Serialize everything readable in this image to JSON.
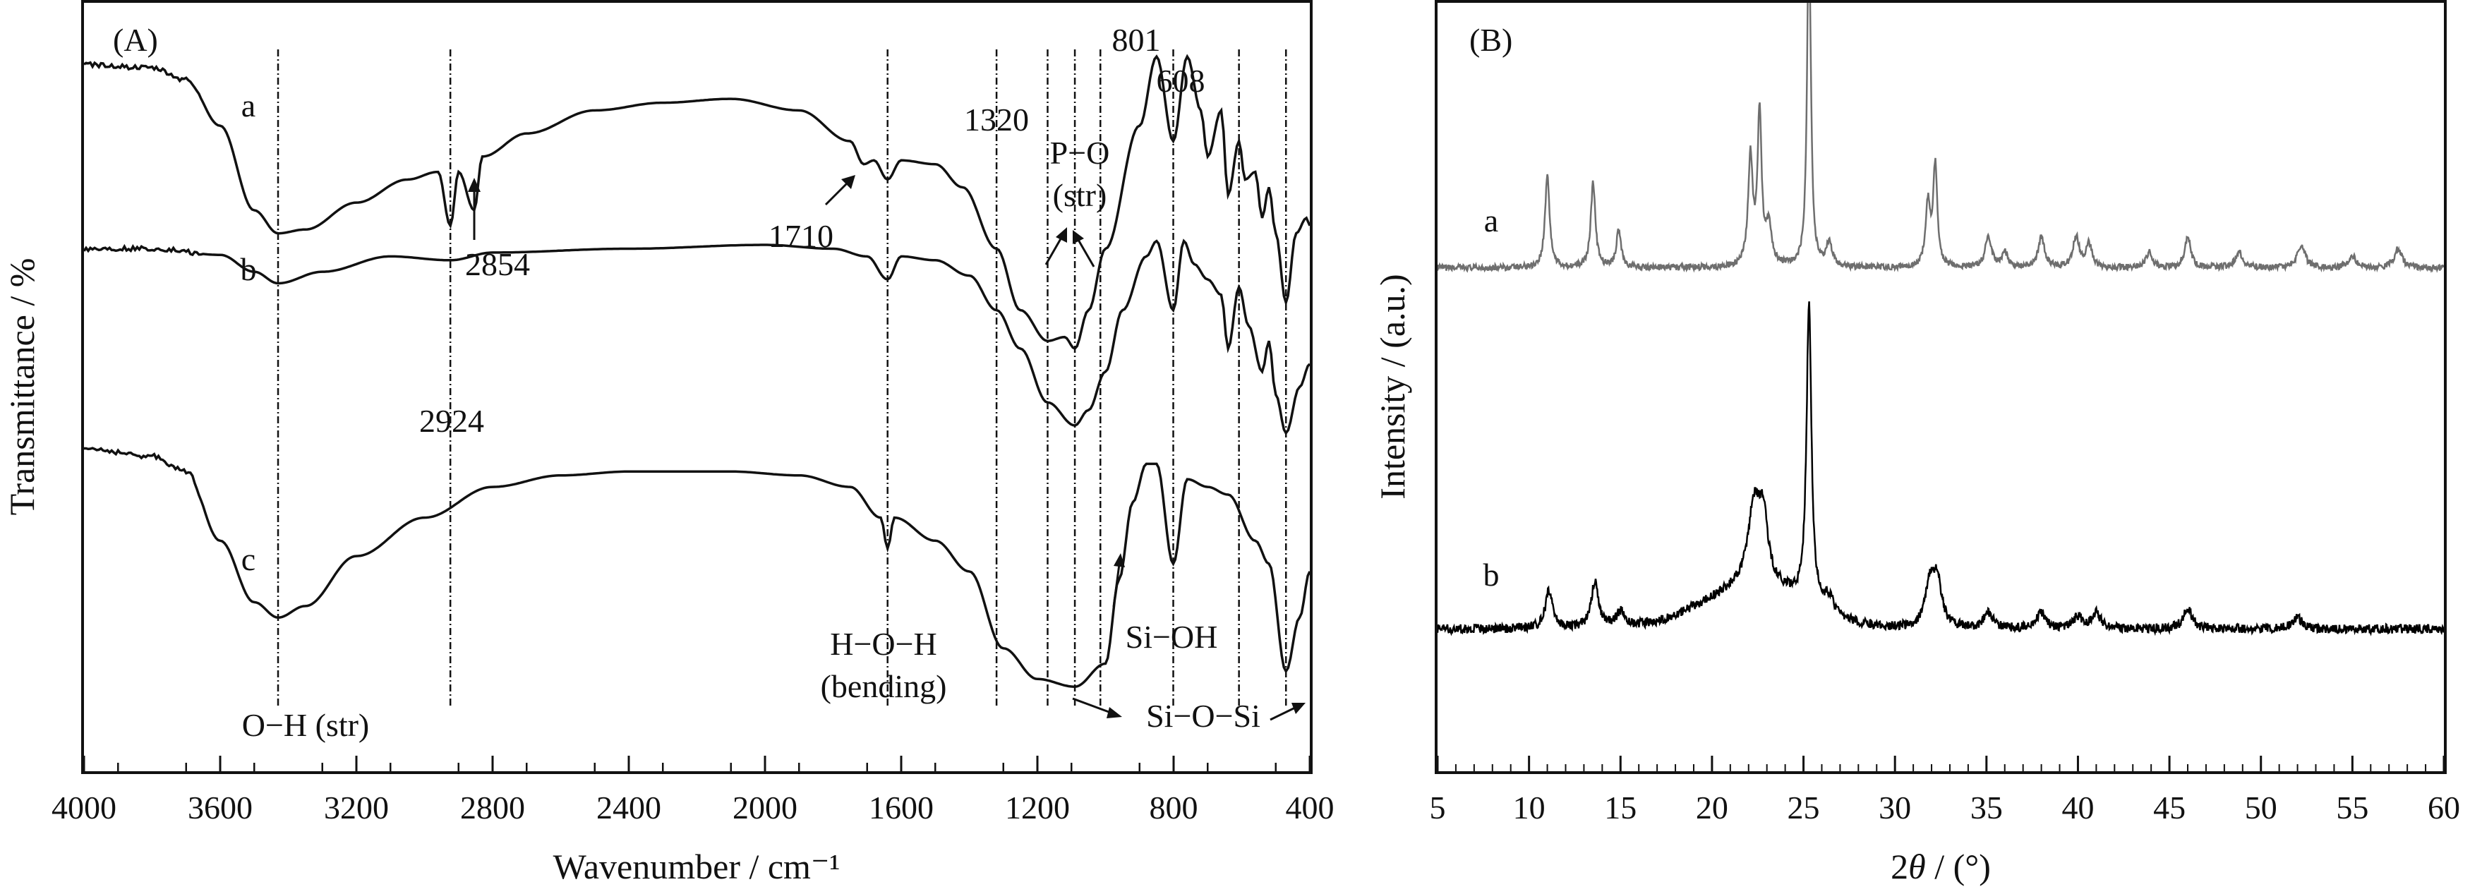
{
  "chart_data": [
    {
      "panel_label": "(A)",
      "type": "line",
      "xlabel": "Wavenumber / cm⁻¹",
      "ylabel": "Transmittance / %",
      "xlim": [
        4000,
        400
      ],
      "x_reversed": true,
      "xticks": [
        4000,
        3600,
        3200,
        2800,
        2400,
        2000,
        1600,
        1200,
        800,
        400
      ],
      "y_ticks_shown": false,
      "series": [
        {
          "name": "a",
          "color": "#111111",
          "points": [
            [
              4000,
              0.92
            ],
            [
              3800,
              0.915
            ],
            [
              3700,
              0.9
            ],
            [
              3600,
              0.84
            ],
            [
              3500,
              0.73
            ],
            [
              3430,
              0.7
            ],
            [
              3350,
              0.705
            ],
            [
              3200,
              0.74
            ],
            [
              3050,
              0.77
            ],
            [
              2960,
              0.78
            ],
            [
              2924,
              0.71
            ],
            [
              2900,
              0.78
            ],
            [
              2854,
              0.73
            ],
            [
              2830,
              0.8
            ],
            [
              2700,
              0.83
            ],
            [
              2500,
              0.86
            ],
            [
              2300,
              0.87
            ],
            [
              2100,
              0.875
            ],
            [
              1900,
              0.86
            ],
            [
              1750,
              0.82
            ],
            [
              1710,
              0.79
            ],
            [
              1680,
              0.795
            ],
            [
              1640,
              0.77
            ],
            [
              1600,
              0.795
            ],
            [
              1500,
              0.79
            ],
            [
              1420,
              0.76
            ],
            [
              1320,
              0.68
            ],
            [
              1250,
              0.6
            ],
            [
              1170,
              0.56
            ],
            [
              1120,
              0.565
            ],
            [
              1090,
              0.55
            ],
            [
              1050,
              0.6
            ],
            [
              1000,
              0.68
            ],
            [
              900,
              0.84
            ],
            [
              850,
              0.93
            ],
            [
              801,
              0.82
            ],
            [
              760,
              0.93
            ],
            [
              720,
              0.86
            ],
            [
              700,
              0.8
            ],
            [
              660,
              0.86
            ],
            [
              640,
              0.75
            ],
            [
              608,
              0.82
            ],
            [
              590,
              0.77
            ],
            [
              560,
              0.78
            ],
            [
              540,
              0.72
            ],
            [
              520,
              0.76
            ],
            [
              500,
              0.7
            ],
            [
              470,
              0.61
            ],
            [
              440,
              0.7
            ],
            [
              410,
              0.72
            ],
            [
              400,
              0.71
            ]
          ]
        },
        {
          "name": "b",
          "color": "#111111",
          "points": [
            [
              4000,
              0.68
            ],
            [
              3800,
              0.68
            ],
            [
              3600,
              0.672
            ],
            [
              3500,
              0.65
            ],
            [
              3430,
              0.635
            ],
            [
              3300,
              0.65
            ],
            [
              3100,
              0.67
            ],
            [
              2924,
              0.665
            ],
            [
              2800,
              0.675
            ],
            [
              2400,
              0.68
            ],
            [
              2000,
              0.685
            ],
            [
              1800,
              0.68
            ],
            [
              1700,
              0.67
            ],
            [
              1640,
              0.64
            ],
            [
              1600,
              0.67
            ],
            [
              1500,
              0.665
            ],
            [
              1400,
              0.645
            ],
            [
              1320,
              0.6
            ],
            [
              1250,
              0.55
            ],
            [
              1170,
              0.48
            ],
            [
              1090,
              0.45
            ],
            [
              1050,
              0.47
            ],
            [
              1000,
              0.52
            ],
            [
              950,
              0.6
            ],
            [
              880,
              0.67
            ],
            [
              850,
              0.69
            ],
            [
              801,
              0.6
            ],
            [
              770,
              0.69
            ],
            [
              740,
              0.66
            ],
            [
              700,
              0.64
            ],
            [
              660,
              0.62
            ],
            [
              640,
              0.55
            ],
            [
              608,
              0.63
            ],
            [
              580,
              0.58
            ],
            [
              540,
              0.52
            ],
            [
              520,
              0.56
            ],
            [
              500,
              0.49
            ],
            [
              470,
              0.44
            ],
            [
              430,
              0.5
            ],
            [
              400,
              0.53
            ]
          ]
        },
        {
          "name": "c",
          "color": "#111111",
          "points": [
            [
              4000,
              0.42
            ],
            [
              3800,
              0.41
            ],
            [
              3700,
              0.39
            ],
            [
              3600,
              0.3
            ],
            [
              3500,
              0.22
            ],
            [
              3430,
              0.2
            ],
            [
              3350,
              0.215
            ],
            [
              3200,
              0.28
            ],
            [
              3000,
              0.33
            ],
            [
              2800,
              0.37
            ],
            [
              2600,
              0.385
            ],
            [
              2400,
              0.39
            ],
            [
              2100,
              0.39
            ],
            [
              1900,
              0.385
            ],
            [
              1750,
              0.37
            ],
            [
              1660,
              0.33
            ],
            [
              1640,
              0.29
            ],
            [
              1620,
              0.33
            ],
            [
              1500,
              0.3
            ],
            [
              1400,
              0.26
            ],
            [
              1300,
              0.16
            ],
            [
              1200,
              0.12
            ],
            [
              1090,
              0.11
            ],
            [
              1000,
              0.14
            ],
            [
              960,
              0.25
            ],
            [
              920,
              0.35
            ],
            [
              880,
              0.4
            ],
            [
              850,
              0.4
            ],
            [
              801,
              0.27
            ],
            [
              760,
              0.38
            ],
            [
              700,
              0.37
            ],
            [
              640,
              0.36
            ],
            [
              560,
              0.3
            ],
            [
              520,
              0.27
            ],
            [
              470,
              0.13
            ],
            [
              430,
              0.2
            ],
            [
              400,
              0.26
            ]
          ]
        }
      ],
      "vertical_reference_lines": [
        3430,
        2924,
        1640,
        1320,
        1170,
        1090,
        1015,
        801,
        608,
        470
      ],
      "annotations": {
        "curve_a": "a",
        "curve_b": "b",
        "curve_c": "c",
        "peak_2924": "2924",
        "peak_2854": "2854",
        "peak_1710": "1710",
        "peak_1320": "1320",
        "peak_801": "801",
        "peak_608": "608",
        "po": "P−O",
        "po_str": "(str)",
        "oh": "O−H (str)",
        "hoh": "H−O−H",
        "bending": "(bending)",
        "sioh": "Si−OH",
        "siosi": "Si−O−Si"
      }
    },
    {
      "panel_label": "(B)",
      "type": "line",
      "xlabel_parts": [
        "2",
        "θ",
        " / (°)"
      ],
      "ylabel": "Intensity / (a.u.)",
      "xlim": [
        5,
        60
      ],
      "xticks": [
        5,
        10,
        15,
        20,
        25,
        30,
        35,
        40,
        45,
        50,
        55,
        60
      ],
      "y_ticks_shown": false,
      "series": [
        {
          "name": "a",
          "color": "#6e6e6e",
          "baseline": 0.655,
          "noise": 0.008,
          "hump": null,
          "peaks": [
            [
              11.0,
              0.12,
              0.15
            ],
            [
              13.5,
              0.11,
              0.15
            ],
            [
              14.9,
              0.05,
              0.15
            ],
            [
              22.1,
              0.14,
              0.15
            ],
            [
              22.6,
              0.2,
              0.13
            ],
            [
              23.1,
              0.05,
              0.2
            ],
            [
              25.3,
              0.45,
              0.12
            ],
            [
              26.4,
              0.03,
              0.2
            ],
            [
              31.8,
              0.08,
              0.15
            ],
            [
              32.2,
              0.13,
              0.14
            ],
            [
              35.1,
              0.04,
              0.2
            ],
            [
              36.0,
              0.02,
              0.2
            ],
            [
              38.0,
              0.04,
              0.2
            ],
            [
              39.9,
              0.04,
              0.2
            ],
            [
              40.6,
              0.03,
              0.2
            ],
            [
              43.9,
              0.02,
              0.2
            ],
            [
              46.0,
              0.04,
              0.2
            ],
            [
              48.8,
              0.02,
              0.25
            ],
            [
              52.2,
              0.03,
              0.25
            ],
            [
              55.0,
              0.015,
              0.25
            ],
            [
              57.5,
              0.025,
              0.25
            ]
          ]
        },
        {
          "name": "b",
          "color": "#000000",
          "baseline": 0.185,
          "noise": 0.012,
          "hump": [
            22.3,
            2.8,
            0.055
          ],
          "peaks": [
            [
              11.1,
              0.05,
              0.25
            ],
            [
              13.6,
              0.06,
              0.25
            ],
            [
              15.0,
              0.02,
              0.3
            ],
            [
              22.3,
              0.1,
              0.4
            ],
            [
              22.8,
              0.08,
              0.3
            ],
            [
              25.3,
              0.39,
              0.16
            ],
            [
              26.4,
              0.02,
              0.3
            ],
            [
              31.9,
              0.05,
              0.3
            ],
            [
              32.3,
              0.06,
              0.3
            ],
            [
              35.1,
              0.02,
              0.3
            ],
            [
              38.0,
              0.02,
              0.3
            ],
            [
              40.0,
              0.015,
              0.3
            ],
            [
              41.0,
              0.02,
              0.3
            ],
            [
              46.0,
              0.025,
              0.3
            ],
            [
              52.0,
              0.015,
              0.3
            ]
          ]
        }
      ],
      "annotations": {
        "curve_a": "a",
        "curve_b": "b"
      }
    }
  ]
}
